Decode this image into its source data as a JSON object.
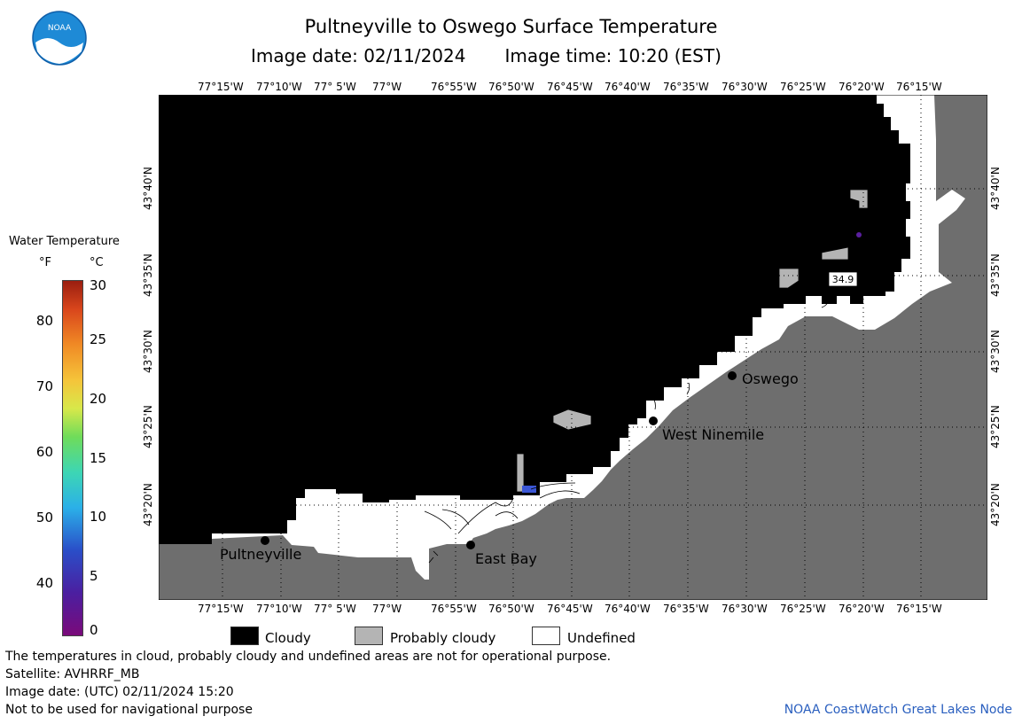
{
  "header": {
    "title": "Pultneyville to Oswego Surface Temperature",
    "image_date": "Image date: 02/11/2024",
    "image_time": "Image time: 10:20 (EST)"
  },
  "logo": {
    "icon": "noaa-logo",
    "text": "NOAA"
  },
  "map": {
    "lon_ticks": [
      "77°15'W",
      "77°10'W",
      "77° 5'W",
      "77°W",
      "76°55'W",
      "76°50'W",
      "76°45'W",
      "76°40'W",
      "76°35'W",
      "76°30'W",
      "76°25'W",
      "76°20'W",
      "76°15'W"
    ],
    "lat_ticks": [
      "43°40'N",
      "43°35'N",
      "43°30'N",
      "43°25'N",
      "43°20'N"
    ],
    "cities": {
      "oswego": "Oswego",
      "west_ninemile": "West Ninemile",
      "east_bay": "East Bay",
      "pultneyville": "Pultneyville"
    },
    "temp_label": "34.9",
    "colors": {
      "cloudy": "#000000",
      "land": "#6e6e6e",
      "probably_cloudy": "#b4b4b4",
      "undefined": "#ffffff"
    }
  },
  "legend": {
    "title": "Water Temperature",
    "unit_f": "°F",
    "unit_c": "°C",
    "f_ticks": [
      "80",
      "70",
      "60",
      "50",
      "40"
    ],
    "c_ticks": [
      "30",
      "25",
      "20",
      "15",
      "10",
      "5",
      "0"
    ],
    "categories": {
      "cloudy": "Cloudy",
      "probably_cloudy": "Probably cloudy",
      "undefined": "Undefined"
    }
  },
  "notes": {
    "disclaimer": "The temperatures in cloud, probably cloudy and undefined areas are not for operational purpose.",
    "satellite": "Satellite: AVHRRF_MB",
    "utc_date": "Image date: (UTC) 02/11/2024  15:20",
    "nav": "Not to be used for navigational purpose",
    "credit": "NOAA CoastWatch Great Lakes Node"
  }
}
